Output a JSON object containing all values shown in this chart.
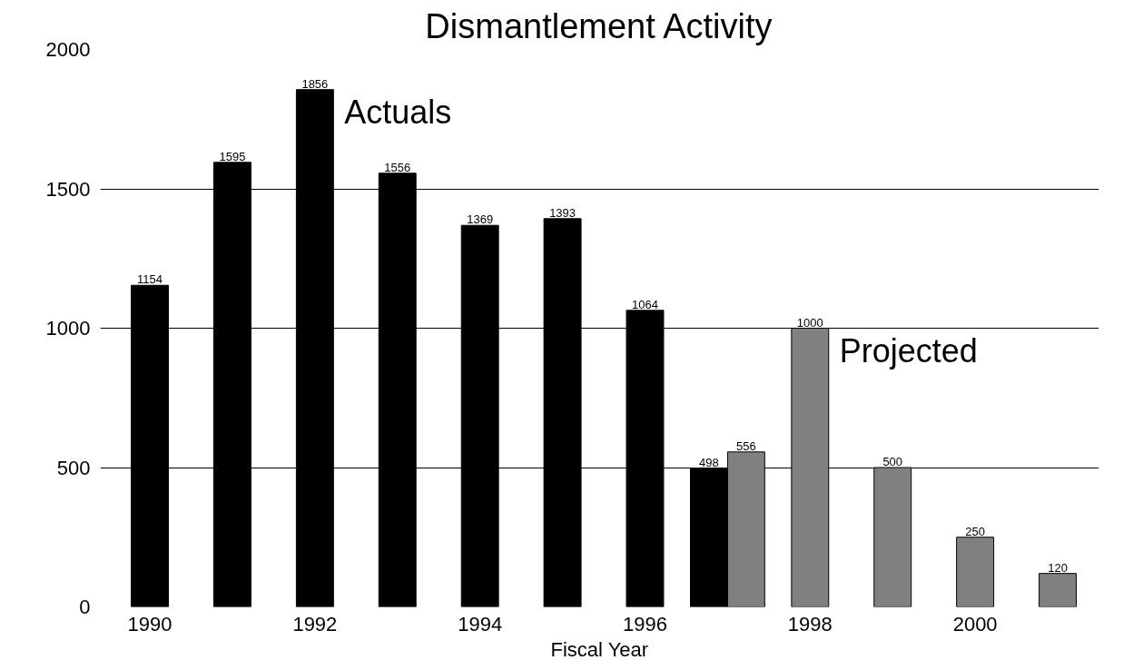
{
  "chart_data": {
    "type": "bar",
    "title": "Dismantlement Activity",
    "xlabel": "Fiscal Year",
    "categories": [
      "1990",
      null,
      "1992",
      null,
      "1994",
      null,
      "1996",
      null,
      "1998",
      null,
      "2000",
      null
    ],
    "series": [
      {
        "name": "Actuals",
        "color": "#000000",
        "values": [
          1154,
          1595,
          1856,
          1556,
          1369,
          1393,
          1064,
          498,
          null,
          null,
          null,
          null
        ]
      },
      {
        "name": "Projected",
        "color": "#808080",
        "values": [
          null,
          null,
          null,
          null,
          null,
          null,
          null,
          556,
          1000,
          500,
          250,
          120
        ]
      }
    ],
    "ylim": [
      0,
      2000
    ],
    "yticks": [
      0,
      500,
      1000,
      1500,
      2000
    ],
    "grid": "y",
    "legend": false,
    "data_labels": true
  }
}
